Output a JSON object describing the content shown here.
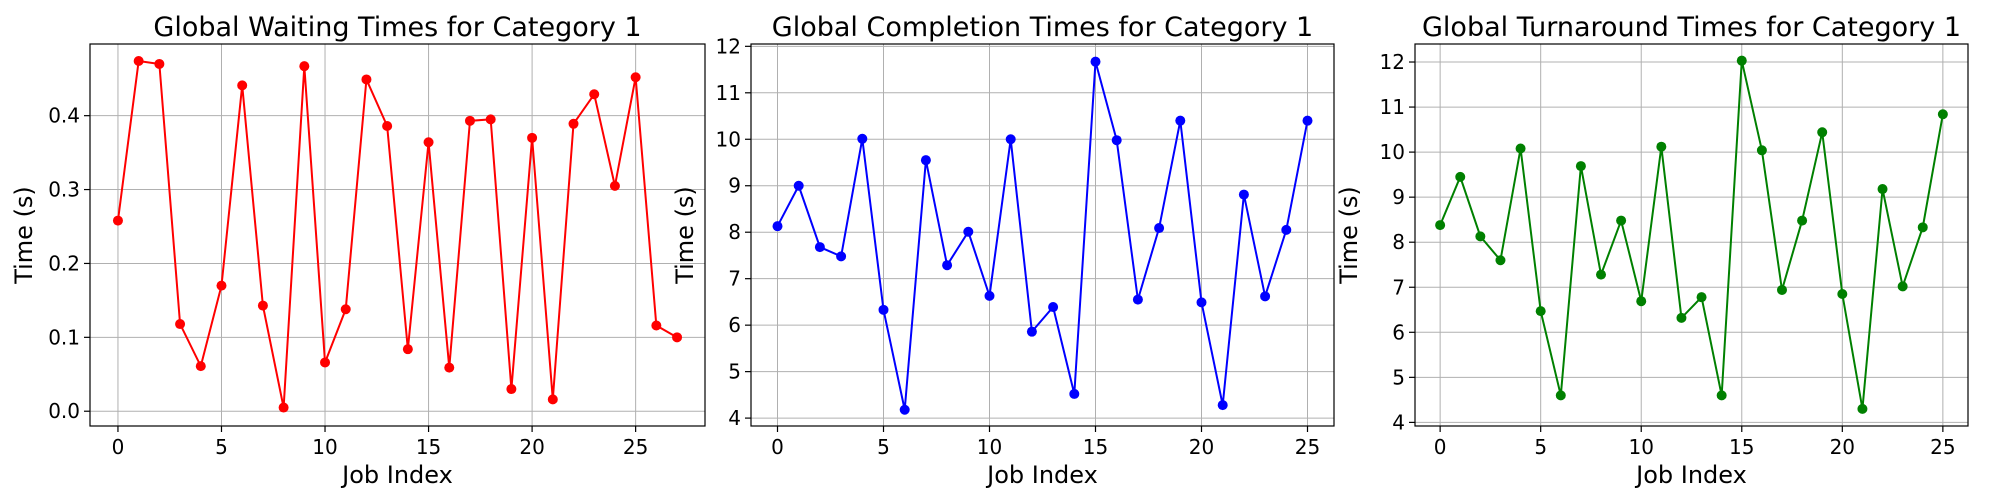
{
  "chart_data": [
    {
      "type": "line",
      "title": "Global Waiting Times for Category 1",
      "xlabel": "Job Index",
      "ylabel": "Time (s)",
      "xlim": [
        -1.35,
        28.35
      ],
      "ylim": [
        -0.02,
        0.497
      ],
      "xticks": [
        0,
        5,
        10,
        15,
        20,
        25
      ],
      "yticks": [
        0.0,
        0.1,
        0.2,
        0.3,
        0.4
      ],
      "ytick_labels": [
        "0.0",
        "0.1",
        "0.2",
        "0.3",
        "0.4"
      ],
      "grid": true,
      "color": "#ff0000",
      "marker": "circle",
      "series": [
        {
          "x": [
            0,
            1,
            2,
            3,
            4,
            5,
            6,
            7,
            8,
            9,
            10,
            11,
            12,
            13,
            14,
            15,
            16,
            17,
            18,
            19,
            20,
            21,
            22,
            23,
            24,
            25,
            26,
            27
          ],
          "values": [
            0.258,
            0.474,
            0.47,
            0.118,
            0.061,
            0.17,
            0.441,
            0.143,
            0.005,
            0.467,
            0.066,
            0.138,
            0.449,
            0.386,
            0.084,
            0.364,
            0.059,
            0.393,
            0.395,
            0.03,
            0.37,
            0.016,
            0.389,
            0.429,
            0.305,
            0.452,
            0.116,
            0.1
          ]
        }
      ]
    },
    {
      "type": "line",
      "title": "Global Completion Times for Category 1",
      "xlabel": "Job Index",
      "ylabel": "Time (s)",
      "xlim": [
        -1.25,
        26.25
      ],
      "ylim": [
        3.83,
        12.05
      ],
      "xticks": [
        0,
        5,
        10,
        15,
        20,
        25
      ],
      "yticks": [
        4,
        5,
        6,
        7,
        8,
        9,
        10,
        11,
        12
      ],
      "ytick_labels": [
        "4",
        "5",
        "6",
        "7",
        "8",
        "9",
        "10",
        "11",
        "12"
      ],
      "grid": true,
      "color": "#0000ff",
      "marker": "circle",
      "series": [
        {
          "x": [
            0,
            1,
            2,
            3,
            4,
            5,
            6,
            7,
            8,
            9,
            10,
            11,
            12,
            13,
            14,
            15,
            16,
            17,
            18,
            19,
            20,
            21,
            22,
            23,
            24,
            25
          ],
          "values": [
            8.13,
            9.0,
            7.68,
            7.48,
            10.01,
            6.33,
            4.18,
            9.55,
            7.29,
            8.01,
            6.63,
            10.0,
            5.86,
            6.39,
            4.52,
            11.67,
            9.98,
            6.55,
            8.09,
            10.4,
            6.49,
            4.28,
            8.81,
            6.62,
            8.05,
            10.4
          ]
        }
      ]
    },
    {
      "type": "line",
      "title": "Global Turnaround Times for Category 1",
      "xlabel": "Job Index",
      "ylabel": "Time (s)",
      "xlim": [
        -1.25,
        26.25
      ],
      "ylim": [
        3.92,
        12.4
      ],
      "xticks": [
        0,
        5,
        10,
        15,
        20,
        25
      ],
      "yticks": [
        4,
        5,
        6,
        7,
        8,
        9,
        10,
        11,
        12
      ],
      "ytick_labels": [
        "4",
        "5",
        "6",
        "7",
        "8",
        "9",
        "10",
        "11",
        "12"
      ],
      "grid": true,
      "color": "#008000",
      "marker": "circle",
      "series": [
        {
          "x": [
            0,
            1,
            2,
            3,
            4,
            5,
            6,
            7,
            8,
            9,
            10,
            11,
            12,
            13,
            14,
            15,
            16,
            17,
            18,
            19,
            20,
            21,
            22,
            23,
            24,
            25
          ],
          "values": [
            8.38,
            9.45,
            8.13,
            7.6,
            10.08,
            6.47,
            4.6,
            9.69,
            7.28,
            8.48,
            6.69,
            10.12,
            6.32,
            6.78,
            4.6,
            12.03,
            10.04,
            6.94,
            8.48,
            10.44,
            6.85,
            4.3,
            9.18,
            7.02,
            8.33,
            10.84
          ]
        }
      ]
    }
  ]
}
